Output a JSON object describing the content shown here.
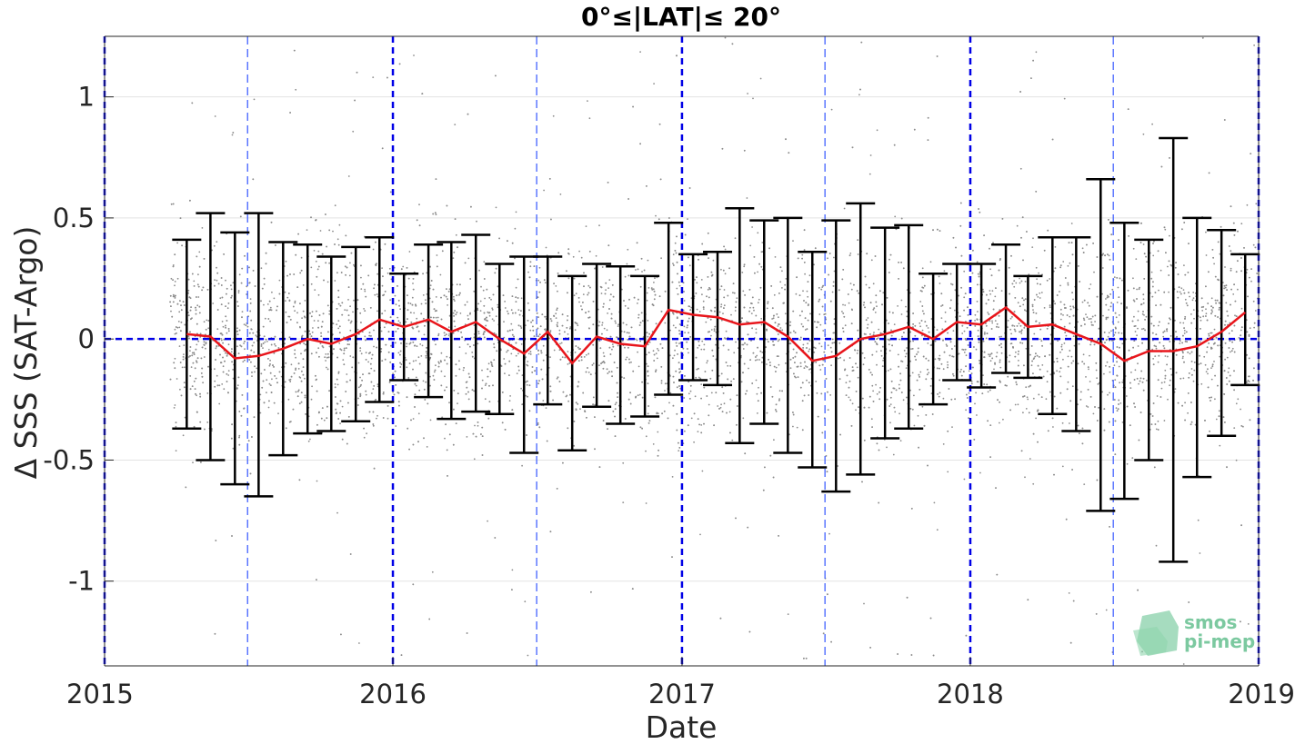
{
  "chart_data": {
    "type": "scatter",
    "title": "0°≤|LAT|≤ 20°",
    "xlabel": "Date",
    "ylabel": "Δ SSS (SAT-Argo)",
    "xlim": [
      "2015-01-01",
      "2019-01-01"
    ],
    "ylim": [
      -1.35,
      1.25
    ],
    "x_ticks": [
      "2015",
      "2016",
      "2017",
      "2018",
      "2019"
    ],
    "y_ticks": [
      -1,
      -0.5,
      0,
      0.5,
      1
    ],
    "y_tick_labels": [
      "-1",
      "-0.5",
      "0",
      "0.5",
      "1"
    ],
    "grid": true,
    "colors": {
      "points": "#8c8c8c",
      "mean_line": "#e8151b",
      "error_bars": "#000000",
      "reference_lines": "#0000e6"
    },
    "reference_lines": {
      "zero_y": 0,
      "year_lines": [
        "2015-01-01",
        "2016-01-01",
        "2017-01-01",
        "2018-01-01",
        "2019-01-01"
      ],
      "half_year_lines": [
        "2015-07-01",
        "2016-07-01",
        "2017-07-01",
        "2018-07-01"
      ]
    },
    "series": [
      {
        "type": "errorbar_line",
        "x": [
          "2015-04-15",
          "2015-05-15",
          "2015-06-15",
          "2015-07-15",
          "2015-08-15",
          "2015-09-15",
          "2015-10-15",
          "2015-11-15",
          "2015-12-15",
          "2016-01-15",
          "2016-02-15",
          "2016-03-15",
          "2016-04-15",
          "2016-05-15",
          "2016-06-15",
          "2016-07-15",
          "2016-08-15",
          "2016-09-15",
          "2016-10-15",
          "2016-11-15",
          "2016-12-15",
          "2017-01-15",
          "2017-02-15",
          "2017-03-15",
          "2017-04-15",
          "2017-05-15",
          "2017-06-15",
          "2017-07-15",
          "2017-08-15",
          "2017-09-15",
          "2017-10-15",
          "2017-11-15",
          "2017-12-15",
          "2018-01-15",
          "2018-02-15",
          "2018-03-15",
          "2018-04-15",
          "2018-05-15",
          "2018-06-15",
          "2018-07-15",
          "2018-08-15",
          "2018-09-15",
          "2018-10-15",
          "2018-11-15",
          "2018-12-15"
        ],
        "mean": [
          0.02,
          0.01,
          -0.08,
          -0.07,
          -0.04,
          0.0,
          -0.02,
          0.02,
          0.08,
          0.05,
          0.08,
          0.03,
          0.07,
          0.0,
          -0.06,
          0.03,
          -0.1,
          0.01,
          -0.02,
          -0.03,
          0.12,
          0.1,
          0.09,
          0.06,
          0.07,
          0.01,
          -0.09,
          -0.07,
          0.0,
          0.02,
          0.05,
          0.0,
          0.07,
          0.06,
          0.13,
          0.05,
          0.06,
          0.02,
          -0.02,
          -0.09,
          -0.05,
          -0.05,
          -0.03,
          0.03,
          0.11
        ],
        "upper": [
          0.41,
          0.52,
          0.44,
          0.52,
          0.4,
          0.39,
          0.34,
          0.38,
          0.42,
          0.27,
          0.39,
          0.4,
          0.43,
          0.31,
          0.34,
          0.34,
          0.26,
          0.31,
          0.3,
          0.26,
          0.48,
          0.35,
          0.36,
          0.54,
          0.49,
          0.5,
          0.36,
          0.49,
          0.56,
          0.46,
          0.47,
          0.27,
          0.31,
          0.31,
          0.39,
          0.26,
          0.42,
          0.42,
          0.66,
          0.48,
          0.41,
          0.83,
          0.5,
          0.45,
          0.35
        ],
        "lower": [
          -0.37,
          -0.5,
          -0.6,
          -0.65,
          -0.48,
          -0.39,
          -0.38,
          -0.34,
          -0.26,
          -0.17,
          -0.24,
          -0.33,
          -0.3,
          -0.31,
          -0.47,
          -0.27,
          -0.46,
          -0.28,
          -0.35,
          -0.32,
          -0.23,
          -0.17,
          -0.19,
          -0.43,
          -0.35,
          -0.47,
          -0.53,
          -0.63,
          -0.56,
          -0.41,
          -0.37,
          -0.27,
          -0.17,
          -0.2,
          -0.14,
          -0.16,
          -0.31,
          -0.38,
          -0.71,
          -0.66,
          -0.5,
          -0.92,
          -0.57,
          -0.4,
          -0.19
        ]
      }
    ]
  },
  "logo": {
    "line1": "smos",
    "line2": "pi-mep"
  }
}
